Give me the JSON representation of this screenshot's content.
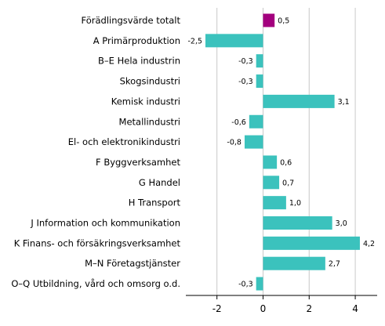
{
  "chart_data": {
    "type": "bar",
    "orientation": "horizontal",
    "title": "",
    "xlabel": "",
    "ylabel": "",
    "categories": [
      "Förädlingsvärde totalt",
      "A Primärproduktion",
      "B–E Hela industrin",
      "Skogsindustri",
      "Kemisk industri",
      "Metallindustri",
      "El- och elektronikindustri",
      "F Byggverksamhet",
      "G Handel",
      "H Transport",
      "J Information och kommunikation",
      "K Finans- och försäkringsverksamhet",
      "M–N Företagstjänster",
      "O–Q Utbildning, vård och omsorg o.d."
    ],
    "values": [
      0.5,
      -2.5,
      -0.3,
      -0.3,
      3.1,
      -0.6,
      -0.8,
      0.6,
      0.7,
      1.0,
      3.0,
      4.2,
      2.7,
      -0.3
    ],
    "value_labels": [
      "0,5",
      "-2,5",
      "-0,3",
      "-0,3",
      "3,1",
      "-0,6",
      "-0,8",
      "0,6",
      "0,7",
      "1,0",
      "3,0",
      "4,2",
      "2,7",
      "-0,3"
    ],
    "xlim": [
      -3.35,
      4.95
    ],
    "xticks": [
      -2,
      0,
      2,
      4
    ],
    "xtick_labels": [
      "-2",
      "0",
      "2",
      "4"
    ],
    "grid": "vertical",
    "colors": {
      "highlight": "#a3007e",
      "bar": "#3bc2bd",
      "grid": "#c8c8c8",
      "axis": "#000000"
    },
    "highlight_index": 0
  }
}
